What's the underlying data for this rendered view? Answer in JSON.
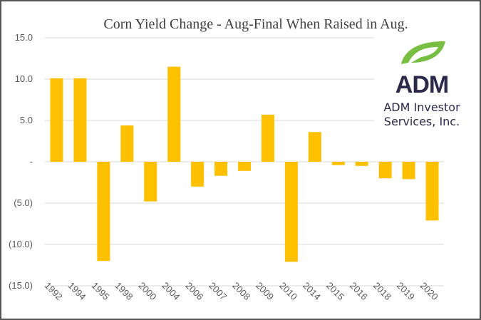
{
  "chart_data": {
    "type": "bar",
    "title": "Corn Yield Change - Aug-Final When Raised in Aug.",
    "xlabel": "",
    "ylabel": "",
    "categories": [
      "1992",
      "1994",
      "1995",
      "1998",
      "2000",
      "2004",
      "2006",
      "2007",
      "2008",
      "2009",
      "2010",
      "2014",
      "2015",
      "2016",
      "2018",
      "2019",
      "2020"
    ],
    "values": [
      10.1,
      10.1,
      -12.0,
      4.4,
      -4.8,
      11.5,
      -3.0,
      -1.7,
      -1.1,
      5.7,
      -12.1,
      3.6,
      -0.4,
      -0.5,
      -2.0,
      -2.1,
      -7.1
    ],
    "ylim": [
      -15,
      15
    ],
    "yticks": [
      15,
      10,
      5,
      0,
      -5,
      -10,
      -15
    ],
    "ytick_labels": [
      "15.0",
      "10.0",
      "5.0",
      "-",
      "(5.0)",
      "(10.0)",
      "(15.0)"
    ],
    "grid": true,
    "legend": "none",
    "bar_color": "#FFC000"
  },
  "logo": {
    "brand": "ADM",
    "line1": "ADM Investor",
    "line2": "Services, Inc.",
    "leaf_color": "#78BE43",
    "text_color": "#2B2A4A"
  }
}
